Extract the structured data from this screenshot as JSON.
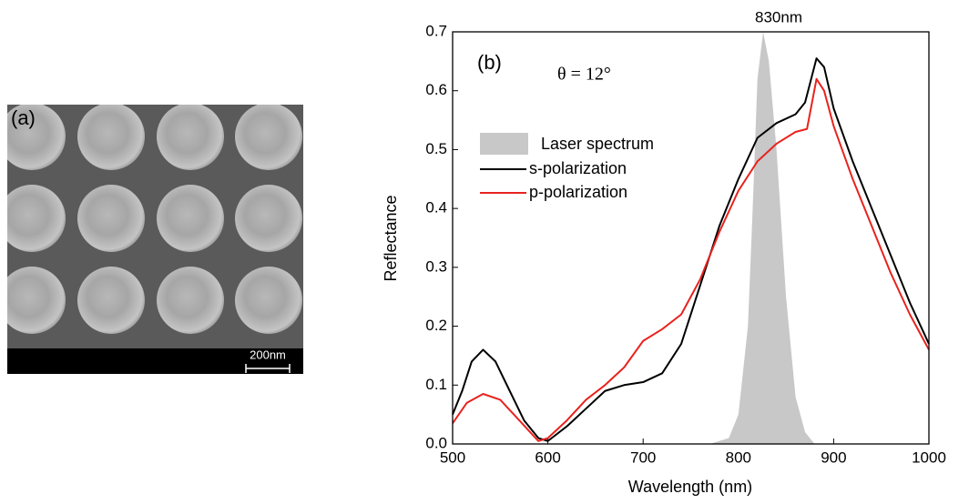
{
  "panel_a": {
    "label": "(a)",
    "scale_bar": "200nm"
  },
  "chart_data": {
    "type": "line",
    "panel_label": "(b)",
    "annotation": "θ = 12°",
    "peak_label": "830nm",
    "x_label": "Wavelength (nm)",
    "y_label": "Reflectance",
    "xlim": [
      500,
      1000
    ],
    "ylim": [
      0,
      0.7
    ],
    "xticks": [
      500,
      600,
      700,
      800,
      900,
      1000
    ],
    "yticks": [
      {
        "value": 0,
        "label": "0.0"
      },
      0.1,
      0.2,
      0.3,
      0.4,
      0.5,
      0.6,
      0.7
    ],
    "series": [
      {
        "name": "Laser spectrum",
        "color": "#c8c8c8",
        "fill": true,
        "x": [
          770,
          790,
          800,
          810,
          815,
          820,
          826,
          832,
          840,
          850,
          860,
          870,
          880
        ],
        "values": [
          0,
          0.01,
          0.05,
          0.2,
          0.4,
          0.62,
          0.7,
          0.65,
          0.5,
          0.25,
          0.08,
          0.02,
          0
        ]
      },
      {
        "name": "s-polarization",
        "color": "#000000",
        "fill": false,
        "x": [
          500,
          510,
          520,
          532,
          545,
          560,
          575,
          590,
          600,
          620,
          640,
          660,
          680,
          700,
          720,
          740,
          760,
          780,
          800,
          820,
          840,
          860,
          870,
          882,
          890,
          900,
          920,
          940,
          960,
          980,
          1000
        ],
        "values": [
          0.05,
          0.09,
          0.14,
          0.16,
          0.14,
          0.09,
          0.04,
          0.01,
          0.005,
          0.03,
          0.06,
          0.09,
          0.1,
          0.105,
          0.12,
          0.17,
          0.27,
          0.37,
          0.45,
          0.52,
          0.545,
          0.56,
          0.58,
          0.655,
          0.64,
          0.57,
          0.48,
          0.4,
          0.32,
          0.24,
          0.17
        ]
      },
      {
        "name": "p-polarization",
        "color": "#e8231e",
        "fill": false,
        "x": [
          500,
          515,
          532,
          550,
          570,
          590,
          600,
          620,
          640,
          660,
          680,
          700,
          720,
          740,
          760,
          780,
          800,
          820,
          840,
          860,
          872,
          882,
          890,
          900,
          920,
          940,
          960,
          980,
          1000
        ],
        "values": [
          0.035,
          0.07,
          0.085,
          0.075,
          0.04,
          0.005,
          0.01,
          0.04,
          0.075,
          0.1,
          0.13,
          0.175,
          0.195,
          0.22,
          0.28,
          0.36,
          0.43,
          0.48,
          0.51,
          0.53,
          0.535,
          0.62,
          0.6,
          0.54,
          0.45,
          0.37,
          0.29,
          0.22,
          0.16
        ]
      }
    ]
  }
}
